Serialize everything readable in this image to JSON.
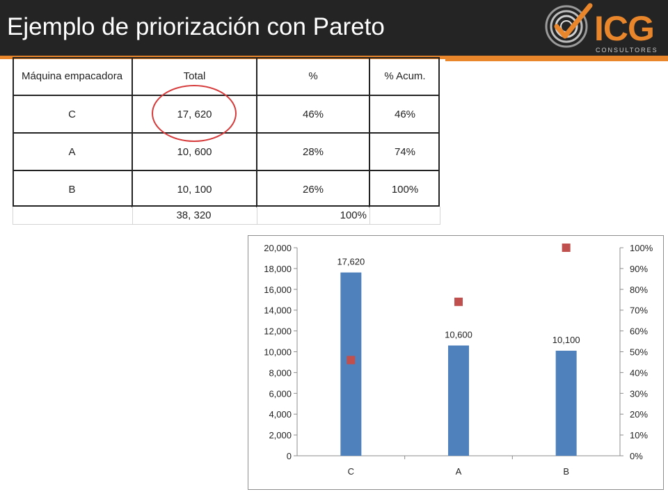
{
  "slide": {
    "title": "Ejemplo de priorización con Pareto",
    "logo": {
      "brand": "ICG",
      "tagline": "CONSULTORES"
    }
  },
  "colors": {
    "header_bg": "#242424",
    "accent": "#e9862b",
    "bar": "#4f81bd",
    "marker": "#c0504d",
    "highlight": "#d63a3a"
  },
  "table": {
    "headers": [
      "Máquina empacadora",
      "Total",
      "%",
      "% Acum."
    ],
    "rows": [
      [
        "C",
        "17, 620",
        "46%",
        "46%"
      ],
      [
        "A",
        "10, 600",
        "28%",
        "74%"
      ],
      [
        "B",
        "10, 100",
        "26%",
        "100%"
      ]
    ],
    "total": {
      "value": "38, 320",
      "percent": "100%"
    }
  },
  "chart_data": {
    "type": "bar",
    "categories": [
      "C",
      "A",
      "B"
    ],
    "series": [
      {
        "values": [
          17620,
          10600,
          10100
        ],
        "axis": "left",
        "kind": "bar",
        "data_labels": [
          "17,620",
          "10,600",
          "10,100"
        ]
      },
      {
        "values": [
          46,
          74,
          100
        ],
        "axis": "right",
        "kind": "scatter"
      }
    ],
    "ylim": [
      0,
      20000
    ],
    "y_ticks": [
      "0",
      "2,000",
      "4,000",
      "6,000",
      "8,000",
      "10,000",
      "12,000",
      "14,000",
      "16,000",
      "18,000",
      "20,000"
    ],
    "y2lim": [
      0,
      100
    ],
    "y2_ticks": [
      "0%",
      "10%",
      "20%",
      "30%",
      "40%",
      "50%",
      "60%",
      "70%",
      "80%",
      "90%",
      "100%"
    ],
    "grid": false,
    "legend": "none"
  }
}
